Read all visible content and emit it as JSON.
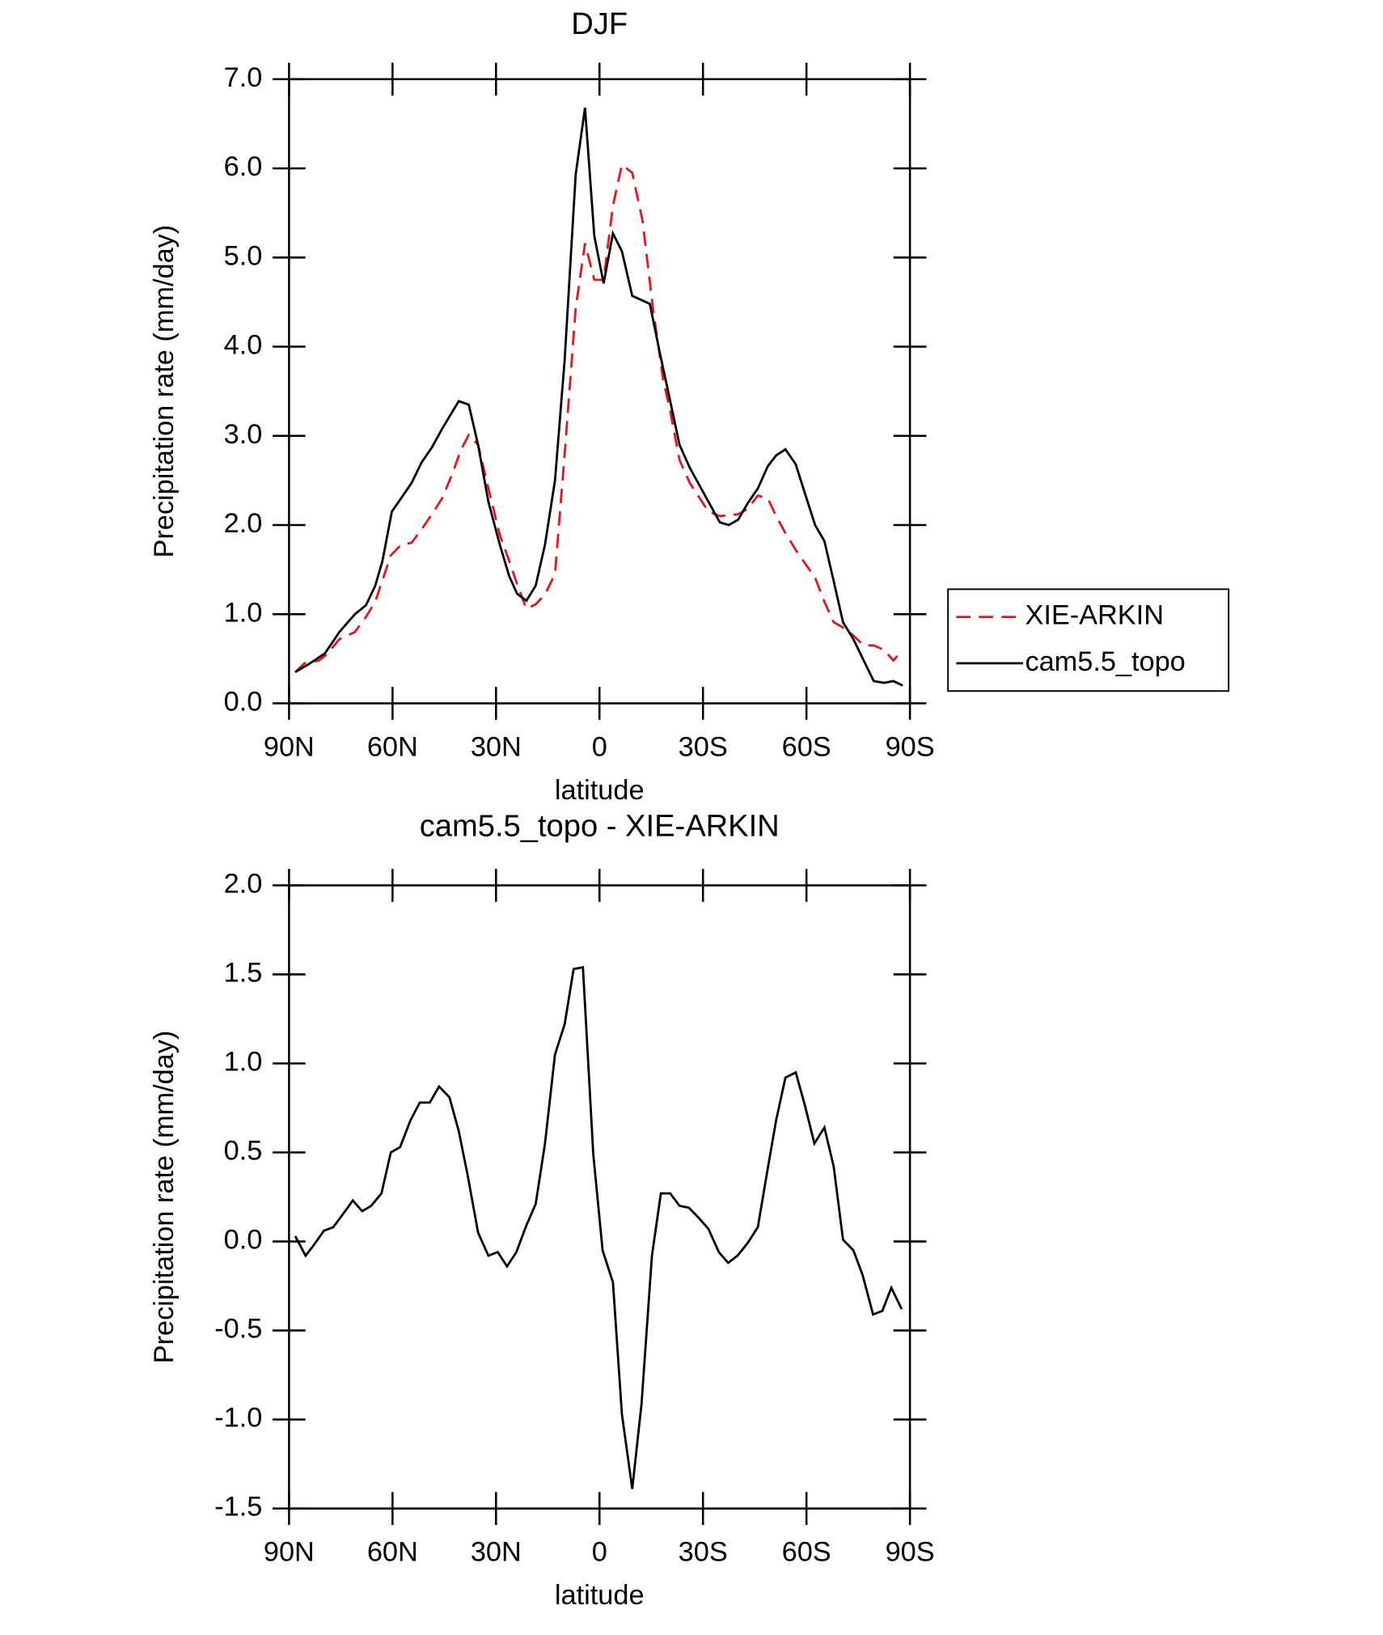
{
  "chart_data": [
    {
      "type": "line",
      "title": "DJF",
      "x_label": "latitude",
      "y_label": "Precipitation rate (mm/day)",
      "xlim": [
        90,
        -90
      ],
      "xticks": [
        {
          "value": 90,
          "label": "90N"
        },
        {
          "value": 60,
          "label": "60N"
        },
        {
          "value": 30,
          "label": "30N"
        },
        0,
        {
          "value": -30,
          "label": "30S"
        },
        {
          "value": -60,
          "label": "60S"
        },
        {
          "value": -90,
          "label": "90S"
        }
      ],
      "ylim": [
        0,
        7
      ],
      "yticks": [
        {
          "value": 0,
          "label": "0.0"
        },
        {
          "value": 1,
          "label": "1.0"
        },
        {
          "value": 2,
          "label": "2.0"
        },
        {
          "value": 3,
          "label": "3.0"
        },
        {
          "value": 4,
          "label": "4.0"
        },
        {
          "value": 5,
          "label": "5.0"
        },
        {
          "value": 6,
          "label": "6.0"
        },
        {
          "value": 7,
          "label": "7.0"
        }
      ],
      "legend": "right",
      "series": [
        {
          "name": "XIE-ARKIN",
          "color": "#e8131b",
          "dash": true,
          "x": [
            88.2,
            85.5,
            81.4,
            79.0,
            75.4,
            70.9,
            67.7,
            65.0,
            60.5,
            57.5,
            54.5,
            51.6,
            48.6,
            45.6,
            42.6,
            40.2,
            37.9,
            35.2,
            32.2,
            28.9,
            26.2,
            23.9,
            21.2,
            18.5,
            15.8,
            12.9,
            10.1,
            6.9,
            4.2,
            1.5,
            -1.2,
            -3.9,
            -6.5,
            -9.5,
            -12.5,
            -15.5,
            -18.5,
            -20.5,
            -23.2,
            -26.2,
            -31.6,
            -34.9,
            -40.2,
            -42.9,
            -45.9,
            -48.8,
            -51.2,
            -53.9,
            -56.9,
            -59.6,
            -62.5,
            -65.2,
            -67.9,
            -70.6,
            -73.6,
            -76.6,
            -79.5,
            -82.5,
            -85.2,
            -87.9
          ],
          "values": [
            0.35,
            0.45,
            0.48,
            0.55,
            0.72,
            0.8,
            0.97,
            1.14,
            1.66,
            1.78,
            1.8,
            1.95,
            2.12,
            2.3,
            2.58,
            2.84,
            3.01,
            2.9,
            2.41,
            1.89,
            1.6,
            1.34,
            1.06,
            1.11,
            1.22,
            1.45,
            2.79,
            4.43,
            5.16,
            4.75,
            4.75,
            5.58,
            6.04,
            5.95,
            5.41,
            4.43,
            3.62,
            3.28,
            2.73,
            2.47,
            2.15,
            2.1,
            2.12,
            2.18,
            2.33,
            2.3,
            2.1,
            1.91,
            1.72,
            1.57,
            1.41,
            1.14,
            0.91,
            0.85,
            0.76,
            0.65,
            0.65,
            0.6,
            0.48,
            0.6
          ]
        },
        {
          "name": "cam5.5_topo",
          "color": "#000000",
          "dash": false,
          "x": [
            88.2,
            84.3,
            79.6,
            75.4,
            70.9,
            67.7,
            65.0,
            62.9,
            60.2,
            54.5,
            51.6,
            48.6,
            45.6,
            40.8,
            37.9,
            35.2,
            32.2,
            28.9,
            26.2,
            23.9,
            21.2,
            18.5,
            15.8,
            12.9,
            10.1,
            6.9,
            4.2,
            1.5,
            -1.2,
            -3.9,
            -6.5,
            -9.5,
            -14.6,
            -17.6,
            -20.5,
            -23.2,
            -26.2,
            -31.6,
            -34.9,
            -37.5,
            -40.2,
            -42.9,
            -45.9,
            -48.8,
            -51.2,
            -53.9,
            -56.9,
            -59.6,
            -62.5,
            -65.2,
            -67.9,
            -70.6,
            -73.6,
            -76.6,
            -79.5,
            -82.5,
            -85.2,
            -87.9
          ],
          "values": [
            0.35,
            0.44,
            0.56,
            0.8,
            1.0,
            1.1,
            1.32,
            1.6,
            2.15,
            2.47,
            2.7,
            2.87,
            3.08,
            3.39,
            3.35,
            2.9,
            2.26,
            1.78,
            1.43,
            1.23,
            1.15,
            1.32,
            1.78,
            2.5,
            3.85,
            5.93,
            6.68,
            5.24,
            4.71,
            5.27,
            5.07,
            4.57,
            4.48,
            3.91,
            3.39,
            2.9,
            2.64,
            2.26,
            2.03,
            2.0,
            2.06,
            2.24,
            2.41,
            2.66,
            2.78,
            2.85,
            2.68,
            2.35,
            2.0,
            1.82,
            1.37,
            0.91,
            0.72,
            0.48,
            0.25,
            0.23,
            0.25,
            0.2
          ]
        }
      ]
    },
    {
      "type": "line",
      "title": "cam5.5_topo - XIE-ARKIN",
      "x_label": "latitude",
      "y_label": "Precipitation rate (mm/day)",
      "xlim": [
        90,
        -90
      ],
      "xticks": [
        {
          "value": 90,
          "label": "90N"
        },
        {
          "value": 60,
          "label": "60N"
        },
        {
          "value": 30,
          "label": "30N"
        },
        0,
        {
          "value": -30,
          "label": "30S"
        },
        {
          "value": -60,
          "label": "60S"
        },
        {
          "value": -90,
          "label": "90S"
        }
      ],
      "ylim": [
        -1.5,
        2
      ],
      "yticks": [
        -1.5,
        {
          "value": -1,
          "label": "-1.0"
        },
        -0.5,
        {
          "value": 0,
          "label": "0.0"
        },
        0.5,
        {
          "value": 1,
          "label": "1.0"
        },
        1.5,
        {
          "value": 2,
          "label": "2.0"
        }
      ],
      "series": [
        {
          "color": "#000000",
          "dash": false,
          "x": [
            88.2,
            85.2,
            82.8,
            79.9,
            77.2,
            74.5,
            71.5,
            68.8,
            66.2,
            63.2,
            60.5,
            57.8,
            54.8,
            52.1,
            49.2,
            46.5,
            43.5,
            40.8,
            38.2,
            35.2,
            32.2,
            29.5,
            26.8,
            24.1,
            21.2,
            18.5,
            15.8,
            12.9,
            10.1,
            7.5,
            4.8,
            1.8,
            -0.9,
            -3.9,
            -6.5,
            -9.5,
            -12.2,
            -15.2,
            -17.8,
            -20.5,
            -23.2,
            -25.9,
            -28.9,
            -31.6,
            -34.6,
            -37.3,
            -40.0,
            -42.9,
            -45.9,
            -48.6,
            -51.2,
            -53.9,
            -56.9,
            -59.6,
            -62.3,
            -65.2,
            -67.9,
            -70.6,
            -73.6,
            -76.3,
            -79.3,
            -82.0,
            -84.6,
            -87.6
          ],
          "values": [
            0.03,
            -0.08,
            -0.02,
            0.06,
            0.08,
            0.15,
            0.23,
            0.17,
            0.2,
            0.27,
            0.5,
            0.53,
            0.68,
            0.78,
            0.78,
            0.87,
            0.81,
            0.62,
            0.37,
            0.05,
            -0.08,
            -0.06,
            -0.14,
            -0.06,
            0.09,
            0.21,
            0.55,
            1.05,
            1.22,
            1.53,
            1.54,
            0.49,
            -0.05,
            -0.23,
            -0.97,
            -1.39,
            -0.91,
            -0.08,
            0.27,
            0.27,
            0.2,
            0.19,
            0.13,
            0.07,
            -0.06,
            -0.12,
            -0.08,
            -0.01,
            0.08,
            0.39,
            0.68,
            0.92,
            0.95,
            0.76,
            0.55,
            0.64,
            0.42,
            0.01,
            -0.05,
            -0.19,
            -0.41,
            -0.39,
            -0.26,
            -0.38
          ]
        }
      ]
    }
  ]
}
